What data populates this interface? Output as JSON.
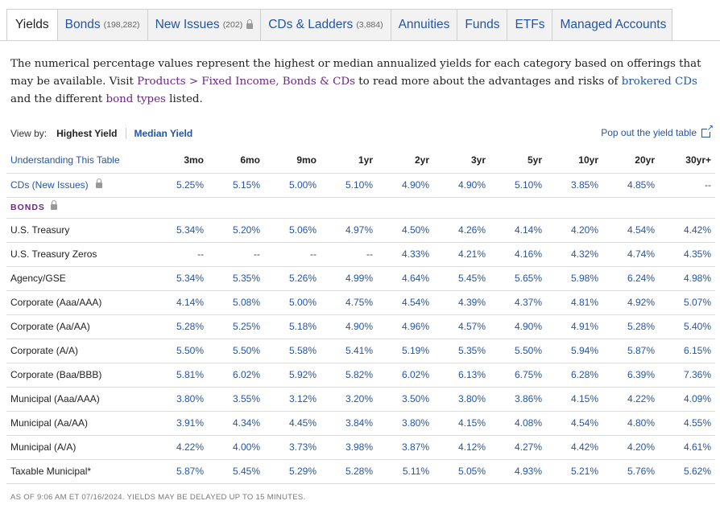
{
  "tabs": [
    {
      "label": "Yields",
      "count": "",
      "locked": false,
      "active": true
    },
    {
      "label": "Bonds",
      "count": "(198,282)",
      "locked": false,
      "active": false
    },
    {
      "label": "New Issues",
      "count": "(202)",
      "locked": true,
      "active": false
    },
    {
      "label": "CDs & Ladders",
      "count": "(3,884)",
      "locked": false,
      "active": false
    },
    {
      "label": "Annuities",
      "count": "",
      "locked": false,
      "active": false
    },
    {
      "label": "Funds",
      "count": "",
      "locked": false,
      "active": false
    },
    {
      "label": "ETFs",
      "count": "",
      "locked": false,
      "active": false
    },
    {
      "label": "Managed Accounts",
      "count": "",
      "locked": false,
      "active": false
    }
  ],
  "intro": {
    "p1": "The numerical percentage values represent the highest or median annualized yields for each category based on offerings that may be available. Visit ",
    "link1": "Products > Fixed Income, Bonds & CDs",
    "p2": " to read more about the advantages and risks of ",
    "link2": "brokered CDs",
    "p3": " and the different ",
    "link3": "bond types",
    "p4": " listed."
  },
  "viewby": {
    "label": "View by:",
    "option_highest": "Highest Yield",
    "option_median": "Median Yield"
  },
  "popout": {
    "label": "Pop out the yield table"
  },
  "table": {
    "understanding": "Understanding This Table",
    "columns": [
      "3mo",
      "6mo",
      "9mo",
      "1yr",
      "2yr",
      "3yr",
      "5yr",
      "10yr",
      "20yr",
      "30yr+"
    ],
    "cds_row": {
      "label": "CDs (New Issues)",
      "values": [
        "5.25%",
        "5.15%",
        "5.00%",
        "5.10%",
        "4.90%",
        "4.90%",
        "5.10%",
        "3.85%",
        "4.85%",
        "--"
      ]
    },
    "bonds_section": "BONDS",
    "rows": [
      {
        "label": "U.S. Treasury",
        "values": [
          "5.34%",
          "5.20%",
          "5.06%",
          "4.97%",
          "4.50%",
          "4.26%",
          "4.14%",
          "4.20%",
          "4.54%",
          "4.42%"
        ]
      },
      {
        "label": "U.S. Treasury Zeros",
        "values": [
          "--",
          "--",
          "--",
          "--",
          "4.33%",
          "4.21%",
          "4.16%",
          "4.32%",
          "4.74%",
          "4.35%"
        ]
      },
      {
        "label": "Agency/GSE",
        "values": [
          "5.34%",
          "5.35%",
          "5.26%",
          "4.99%",
          "4.64%",
          "5.45%",
          "5.65%",
          "5.98%",
          "6.24%",
          "4.98%"
        ]
      },
      {
        "label": "Corporate (Aaa/AAA)",
        "values": [
          "4.14%",
          "5.08%",
          "5.00%",
          "4.75%",
          "4.54%",
          "4.39%",
          "4.37%",
          "4.81%",
          "4.92%",
          "5.07%"
        ]
      },
      {
        "label": "Corporate (Aa/AA)",
        "values": [
          "5.28%",
          "5.25%",
          "5.18%",
          "4.90%",
          "4.96%",
          "4.57%",
          "4.90%",
          "4.91%",
          "5.28%",
          "5.40%"
        ]
      },
      {
        "label": "Corporate (A/A)",
        "values": [
          "5.50%",
          "5.50%",
          "5.58%",
          "5.41%",
          "5.19%",
          "5.35%",
          "5.50%",
          "5.94%",
          "5.87%",
          "6.15%"
        ]
      },
      {
        "label": "Corporate (Baa/BBB)",
        "values": [
          "5.81%",
          "6.02%",
          "5.92%",
          "5.82%",
          "6.02%",
          "6.13%",
          "6.75%",
          "6.28%",
          "6.39%",
          "7.36%"
        ]
      },
      {
        "label": "Municipal (Aaa/AAA)",
        "values": [
          "3.80%",
          "3.55%",
          "3.12%",
          "3.20%",
          "3.50%",
          "3.80%",
          "3.86%",
          "4.15%",
          "4.22%",
          "4.09%"
        ]
      },
      {
        "label": "Municipal (Aa/AA)",
        "values": [
          "3.91%",
          "4.34%",
          "4.45%",
          "3.84%",
          "3.80%",
          "4.15%",
          "4.08%",
          "4.54%",
          "4.80%",
          "4.55%"
        ]
      },
      {
        "label": "Municipal (A/A)",
        "values": [
          "4.22%",
          "4.00%",
          "3.73%",
          "3.98%",
          "3.87%",
          "4.12%",
          "4.27%",
          "4.42%",
          "4.20%",
          "4.61%"
        ]
      },
      {
        "label": "Taxable Municipal*",
        "values": [
          "5.87%",
          "5.45%",
          "5.29%",
          "5.28%",
          "5.11%",
          "5.05%",
          "4.93%",
          "5.21%",
          "5.76%",
          "5.62%"
        ]
      }
    ]
  },
  "footer": "AS OF 9:06 AM ET 07/16/2024. YIELDS MAY BE DELAYED UP TO 15 MINUTES."
}
